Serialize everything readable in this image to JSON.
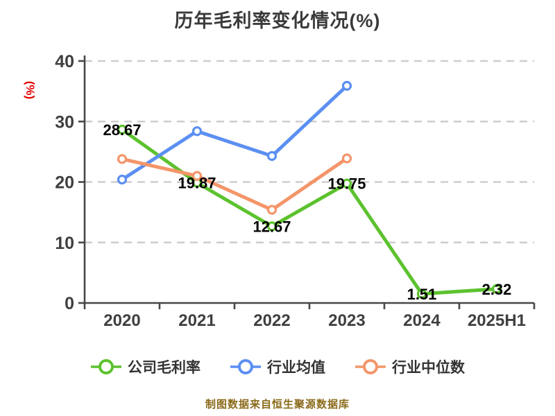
{
  "title": "历年毛利率变化情况(%)",
  "footer": "制图数据来自恒生聚源数据库",
  "y_axis_name": "(%)",
  "colors": {
    "company_line": "#5cc22e",
    "industry_avg_line": "#5b8ff2",
    "industry_median_line": "#f49569",
    "axis": "#474747",
    "grid": "#cdcdcd",
    "tick_label": "#3f3f3f",
    "data_label": "#000000",
    "y_axis_name": "#e60000",
    "title": "#3a3a3a",
    "footer": "#8a6a1a"
  },
  "legend": [
    {
      "label": "公司毛利率",
      "color": "#5cc22e"
    },
    {
      "label": "行业均值",
      "color": "#5b8ff2"
    },
    {
      "label": "行业中位数",
      "color": "#f49569"
    }
  ],
  "chart_data": {
    "type": "line",
    "title": "历年毛利率变化情况(%)",
    "ylabel": "(%)",
    "categories": [
      "2020",
      "2021",
      "2022",
      "2023",
      "2024",
      "2025H1"
    ],
    "series": [
      {
        "name": "公司毛利率",
        "color": "#5cc22e",
        "values": [
          28.67,
          19.87,
          12.67,
          19.75,
          1.51,
          2.32
        ],
        "labels": [
          "28.67",
          "19.87",
          "12.67",
          "19.75",
          "1.51",
          "2.32"
        ]
      },
      {
        "name": "行业均值",
        "color": "#5b8ff2",
        "values": [
          20.4,
          28.4,
          24.3,
          35.9,
          null,
          null
        ]
      },
      {
        "name": "行业中位数",
        "color": "#f49569",
        "values": [
          23.8,
          21.0,
          15.4,
          23.9,
          null,
          null
        ]
      }
    ],
    "ylim": [
      0,
      40
    ],
    "yticks": [
      0,
      10,
      20,
      30,
      40
    ],
    "grid": "horizontal dashed",
    "legend_position": "bottom"
  }
}
